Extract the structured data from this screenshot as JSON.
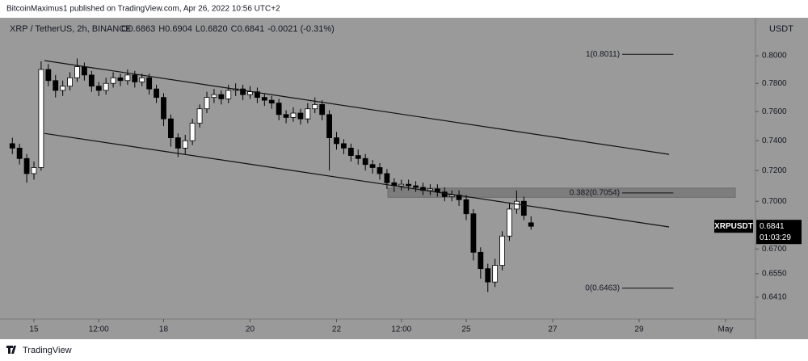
{
  "chart_data": {
    "type": "candlestick",
    "publisher": "BitcoinMaximus1 published on TradingView.com, Apr 26, 2022 10:56 UTC+2",
    "symbol": "XRP / TetherUS, 2h, BINANCE",
    "legend": {
      "o": "O",
      "open": "0.6863",
      "h": "H",
      "high": "0.6904",
      "l": "L",
      "low": "0.6820",
      "c": "C",
      "close": "0.6841",
      "change": "-0.0021 (-0.31%)"
    },
    "currency": "USDT",
    "footer": "TradingView",
    "up_color": "#ffffff",
    "down_color": "#000000",
    "log": true,
    "x": [
      -12,
      -8,
      -4,
      0,
      4,
      8,
      12,
      16,
      20,
      24,
      28,
      32,
      36,
      40,
      44,
      48,
      52,
      56,
      60,
      64,
      68,
      72,
      76,
      80,
      84,
      88,
      92,
      96,
      100,
      104,
      108,
      112,
      116,
      120,
      124,
      128,
      132,
      136,
      140,
      144,
      148,
      152,
      156,
      160,
      164,
      168,
      172,
      176,
      180,
      184,
      188,
      192,
      196,
      200,
      204,
      208,
      212,
      216,
      220,
      224,
      228,
      232,
      236,
      240,
      244,
      248,
      252,
      256,
      260,
      264,
      268,
      272,
      276
    ],
    "open": [
      0.738,
      0.735,
      0.728,
      0.718,
      0.722,
      0.79,
      0.782,
      0.775,
      0.778,
      0.784,
      0.792,
      0.786,
      0.778,
      0.775,
      0.78,
      0.784,
      0.782,
      0.786,
      0.781,
      0.784,
      0.776,
      0.77,
      0.755,
      0.742,
      0.735,
      0.74,
      0.752,
      0.762,
      0.77,
      0.772,
      0.769,
      0.775,
      0.776,
      0.772,
      0.774,
      0.77,
      0.768,
      0.766,
      0.758,
      0.756,
      0.759,
      0.755,
      0.762,
      0.765,
      0.758,
      0.742,
      0.738,
      0.735,
      0.73,
      0.728,
      0.724,
      0.722,
      0.718,
      0.712,
      0.71,
      0.711,
      0.71,
      0.709,
      0.707,
      0.708,
      0.706,
      0.703,
      0.704,
      0.701,
      0.692,
      0.668,
      0.658,
      0.65,
      0.66,
      0.678,
      0.695,
      0.7,
      0.6863
    ],
    "high": [
      0.742,
      0.738,
      0.731,
      0.726,
      0.796,
      0.794,
      0.786,
      0.782,
      0.788,
      0.798,
      0.795,
      0.789,
      0.781,
      0.784,
      0.788,
      0.787,
      0.79,
      0.789,
      0.787,
      0.787,
      0.779,
      0.773,
      0.758,
      0.745,
      0.744,
      0.755,
      0.765,
      0.774,
      0.776,
      0.775,
      0.779,
      0.78,
      0.779,
      0.778,
      0.777,
      0.773,
      0.771,
      0.769,
      0.761,
      0.763,
      0.762,
      0.766,
      0.77,
      0.768,
      0.761,
      0.746,
      0.741,
      0.738,
      0.734,
      0.731,
      0.727,
      0.725,
      0.721,
      0.715,
      0.714,
      0.714,
      0.713,
      0.712,
      0.711,
      0.711,
      0.709,
      0.707,
      0.707,
      0.704,
      0.695,
      0.671,
      0.661,
      0.664,
      0.681,
      0.699,
      0.707,
      0.703,
      0.6904
    ],
    "low": [
      0.731,
      0.724,
      0.712,
      0.714,
      0.72,
      0.778,
      0.77,
      0.771,
      0.775,
      0.781,
      0.782,
      0.774,
      0.771,
      0.772,
      0.777,
      0.778,
      0.779,
      0.777,
      0.778,
      0.772,
      0.766,
      0.75,
      0.736,
      0.729,
      0.731,
      0.737,
      0.749,
      0.759,
      0.766,
      0.765,
      0.766,
      0.771,
      0.768,
      0.769,
      0.766,
      0.764,
      0.762,
      0.754,
      0.752,
      0.753,
      0.751,
      0.752,
      0.759,
      0.754,
      0.72,
      0.734,
      0.731,
      0.726,
      0.724,
      0.72,
      0.718,
      0.714,
      0.708,
      0.706,
      0.707,
      0.707,
      0.706,
      0.704,
      0.704,
      0.703,
      0.7,
      0.7,
      0.697,
      0.688,
      0.663,
      0.652,
      0.644,
      0.647,
      0.657,
      0.675,
      0.692,
      0.688,
      0.682
    ],
    "close": [
      0.735,
      0.728,
      0.718,
      0.722,
      0.79,
      0.782,
      0.775,
      0.778,
      0.784,
      0.792,
      0.786,
      0.778,
      0.775,
      0.78,
      0.784,
      0.782,
      0.786,
      0.781,
      0.784,
      0.776,
      0.77,
      0.755,
      0.742,
      0.735,
      0.74,
      0.752,
      0.762,
      0.77,
      0.772,
      0.769,
      0.775,
      0.776,
      0.772,
      0.774,
      0.77,
      0.768,
      0.766,
      0.758,
      0.756,
      0.759,
      0.755,
      0.762,
      0.765,
      0.758,
      0.742,
      0.738,
      0.735,
      0.73,
      0.728,
      0.724,
      0.722,
      0.718,
      0.712,
      0.71,
      0.711,
      0.71,
      0.709,
      0.707,
      0.708,
      0.706,
      0.703,
      0.704,
      0.701,
      0.692,
      0.668,
      0.658,
      0.65,
      0.66,
      0.678,
      0.695,
      0.7,
      0.691,
      0.6841
    ],
    "xlim": [
      -15.25,
      400.6
    ],
    "xticks": [
      {
        "value": 0,
        "label": "15"
      },
      {
        "value": 36,
        "label": "12:00"
      },
      {
        "value": 72,
        "label": "18"
      },
      {
        "value": 120,
        "label": "20"
      },
      {
        "value": 168,
        "label": "22"
      },
      {
        "value": 204,
        "label": "12:00"
      },
      {
        "value": 240,
        "label": "25"
      },
      {
        "value": 288,
        "label": "27"
      },
      {
        "value": 336,
        "label": "29"
      },
      {
        "value": 384,
        "label": "May"
      }
    ],
    "ylim": [
      0.6283,
      0.8284
    ],
    "yticks": [
      {
        "value": 0.8,
        "label": "0.8000"
      },
      {
        "value": 0.78,
        "label": "0.7800"
      },
      {
        "value": 0.76,
        "label": "0.7600"
      },
      {
        "value": 0.74,
        "label": "0.7400"
      },
      {
        "value": 0.72,
        "label": "0.7200"
      },
      {
        "value": 0.7,
        "label": "0.7000"
      },
      {
        "value": 0.67,
        "label": "0.6700"
      },
      {
        "value": 0.655,
        "label": "0.6550"
      },
      {
        "value": 0.641,
        "label": "0.6410"
      }
    ],
    "trend_lines": [
      {
        "x": [
          5.8,
          352.6
        ],
        "y": [
          0.7965,
          0.7308
        ]
      },
      {
        "x": [
          5.8,
          352.6
        ],
        "y": [
          0.745,
          0.6837
        ]
      }
    ],
    "zone": {
      "x": [
        196.5,
        389.4
      ],
      "y": [
        0.7025,
        0.7085
      ]
    },
    "fib_levels": [
      {
        "label": "1(0.8011)",
        "value": 0.8011,
        "x": [
          326.6,
          355
        ]
      },
      {
        "label": "0.382(0.7054)",
        "value": 0.7054,
        "x": [
          326.6,
          355
        ]
      },
      {
        "label": "0(0.6463)",
        "value": 0.6463,
        "x": [
          326.6,
          355
        ]
      }
    ],
    "last_price": {
      "symbol": "XRPUSDT",
      "value": 0.6841,
      "label": "0.6841",
      "countdown": "01:03:29"
    }
  }
}
